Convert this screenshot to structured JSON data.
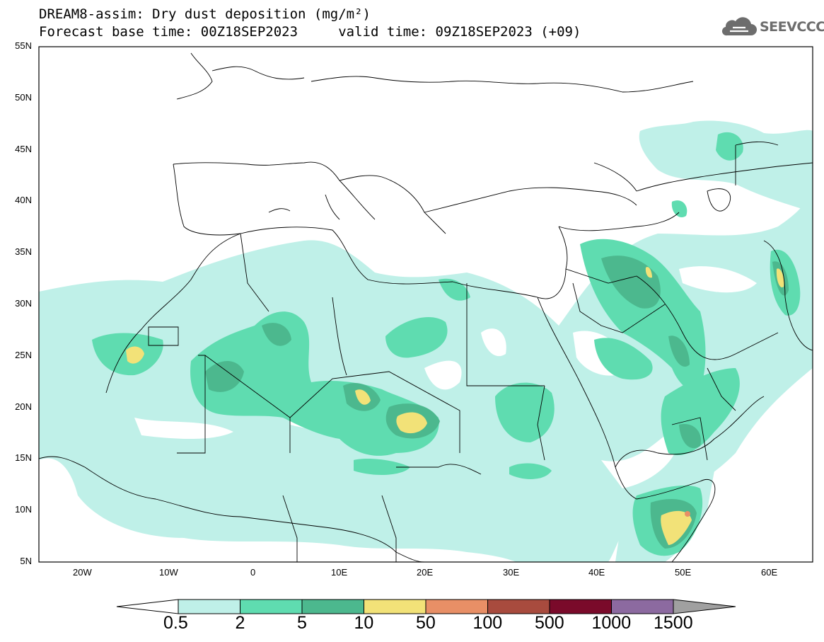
{
  "title": {
    "line1": "DREAM8-assim: Dry dust deposition (mg/m²)",
    "line2": "Forecast base time: 00Z18SEP2023     valid time: 09Z18SEP2023 (+09)"
  },
  "logo": {
    "text": "SEEVCCC",
    "icon": "cloud-icon"
  },
  "axes": {
    "lat_labels": [
      "55N",
      "50N",
      "45N",
      "40N",
      "35N",
      "30N",
      "25N",
      "20N",
      "15N",
      "10N",
      "5N"
    ],
    "lon_labels": [
      "20W",
      "10W",
      "0",
      "10E",
      "20E",
      "30E",
      "40E",
      "50E",
      "60E"
    ]
  },
  "colorbar": {
    "labels": [
      "0.5",
      "2",
      "5",
      "10",
      "50",
      "100",
      "500",
      "1000",
      "1500"
    ],
    "colors": [
      "#bff0e8",
      "#5fdcb0",
      "#4cb88e",
      "#f2e278",
      "#e88f66",
      "#a84b3e",
      "#7a0a2a",
      "#8c6aa0",
      "#a0a0a0"
    ],
    "under_color": "#ffffff",
    "over_color": "#a0a0a0"
  },
  "map": {
    "domain": {
      "lon": [
        -25,
        65
      ],
      "lat": [
        5,
        55
      ]
    },
    "field": "Dry dust deposition",
    "land_outline_color": "#000000"
  }
}
